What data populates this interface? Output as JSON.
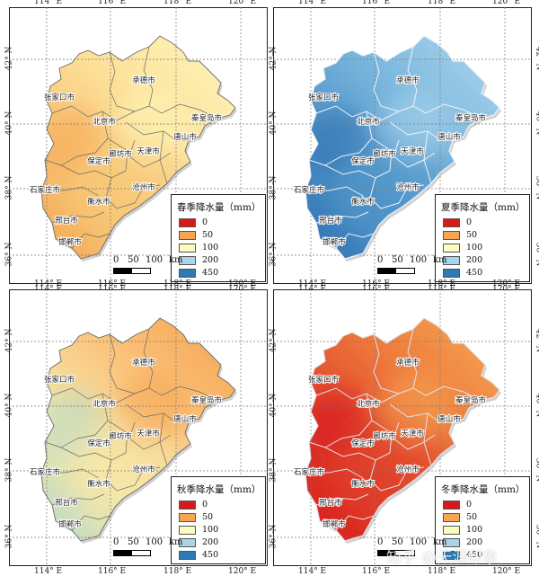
{
  "map": {
    "x_ticks": [
      "114° E",
      "116° E",
      "118° E",
      "120° E"
    ],
    "y_ticks": [
      "42° N",
      "40° N",
      "38° N",
      "36° N"
    ],
    "scale_labels": [
      "0",
      "50",
      "100",
      "km"
    ],
    "legend_values": [
      "0",
      "50",
      "100",
      "200",
      "450"
    ],
    "legend_colors": [
      "#d7191c",
      "#f5a553",
      "#fdfcbf",
      "#a8d6e8",
      "#2d7bb6"
    ],
    "cities": [
      "承德市",
      "张家口市",
      "北京市",
      "秦皇岛市",
      "唐山市",
      "廊坊市",
      "天津市",
      "保定市",
      "沧州市",
      "石家庄市",
      "衡水市",
      "邢台市",
      "邯郸市"
    ]
  },
  "panels": [
    {
      "title": "春季降水量（mm）",
      "season": "spring"
    },
    {
      "title": "夏季降水量（mm）",
      "season": "summer"
    },
    {
      "title": "秋季降水量（mm）",
      "season": "autumn"
    },
    {
      "title": "冬季降水量（mm）",
      "season": "winter"
    }
  ],
  "watermark": "知乎 @天涯印象"
}
